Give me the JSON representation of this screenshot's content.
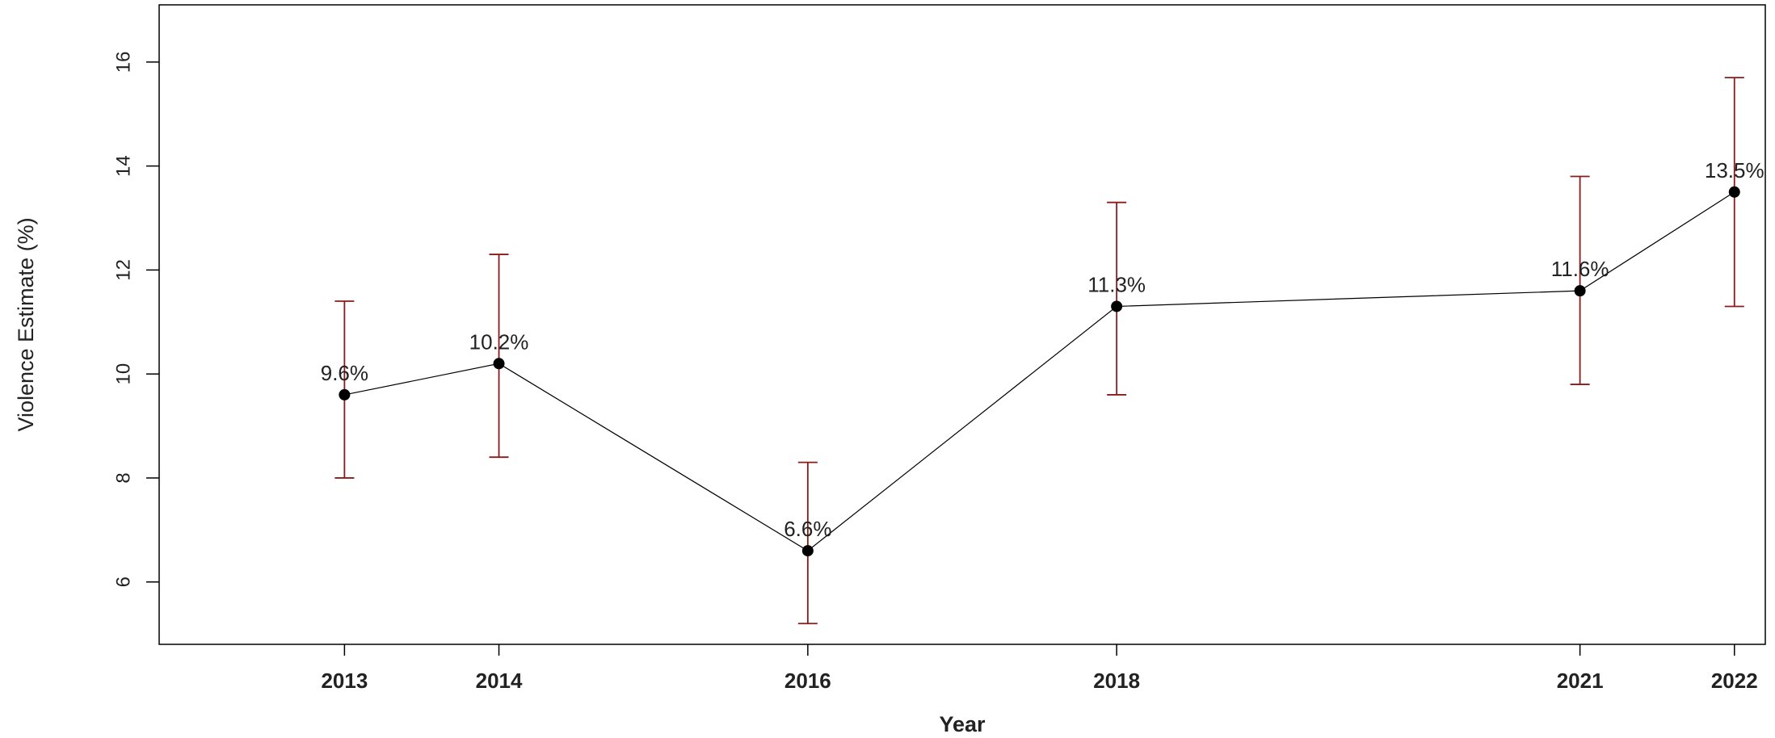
{
  "chart_data": {
    "type": "line",
    "xlabel": "Year",
    "ylabel": "Violence Estimate (%)",
    "x": [
      "2013",
      "2014",
      "2016",
      "2018",
      "2021",
      "2022"
    ],
    "x_numeric": [
      2013,
      2014,
      2016,
      2018,
      2021,
      2022
    ],
    "y": [
      9.6,
      10.2,
      6.6,
      11.3,
      11.6,
      13.5
    ],
    "lower": [
      8.0,
      8.4,
      5.2,
      9.6,
      9.8,
      11.3
    ],
    "upper": [
      11.4,
      12.3,
      8.3,
      13.3,
      13.8,
      15.7
    ],
    "labels": [
      "9.6%",
      "10.2%",
      "6.6%",
      "11.3%",
      "11.6%",
      "13.5%"
    ],
    "y_ticks": [
      6,
      8,
      10,
      12,
      14,
      16
    ],
    "y_tick_labels": [
      "6",
      "8",
      "10",
      "12",
      "14",
      "16"
    ],
    "ylim": [
      4.8,
      17.1
    ],
    "xlim": [
      2011.8,
      2022.2
    ],
    "grid": false,
    "colors": {
      "errorbar": "#8b1a1a",
      "line": "#000000",
      "point": "#000000"
    }
  }
}
